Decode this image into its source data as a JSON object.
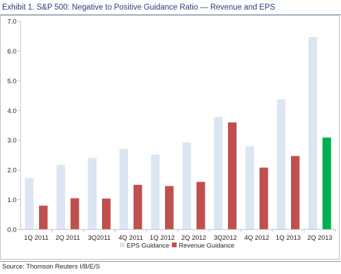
{
  "title": "Exhibit 1. S&P 500: Negative to Positive Guidance Ratio — Revenue and EPS",
  "source": "Source: Thomson Reuters I/B/E/S",
  "colors": {
    "eps": "#dce6f2",
    "revenue": "#c0504d",
    "revenue_highlight": "#00b050",
    "axis": "#bfbfbf",
    "title": "#2a3d7a",
    "rule": "#7f9db9"
  },
  "chart_data": {
    "type": "bar",
    "title": "Exhibit 1. S&P 500: Negative to Positive Guidance Ratio — Revenue and EPS",
    "xlabel": "",
    "ylabel": "",
    "ylim": [
      0,
      7
    ],
    "yticks": [
      "0.0",
      "1.0",
      "2.0",
      "3.0",
      "4.0",
      "5.0",
      "6.0",
      "7.0"
    ],
    "grid": false,
    "legend_position": "bottom",
    "categories": [
      "1Q 2011",
      "2Q 2011",
      "3Q2011",
      "4Q 2011",
      "1Q 2012",
      "2Q 2012",
      "3Q2012",
      "4Q 2012",
      "1Q 2013",
      "2Q 2013"
    ],
    "series": [
      {
        "name": "EPS Guidance",
        "color": "#dce6f2",
        "values": [
          1.73,
          2.17,
          2.41,
          2.71,
          2.52,
          2.93,
          3.78,
          2.8,
          4.37,
          6.47
        ]
      },
      {
        "name": "Revenue Guidance",
        "color": "#c0504d",
        "highlight_last_color": "#00b050",
        "values": [
          0.8,
          1.05,
          1.04,
          1.5,
          1.46,
          1.6,
          3.6,
          2.08,
          2.47,
          3.09
        ]
      }
    ]
  }
}
